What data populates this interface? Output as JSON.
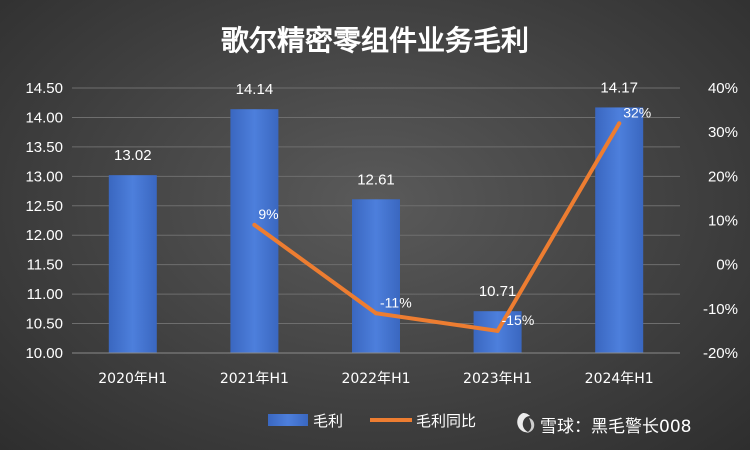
{
  "chart_data": {
    "type": "bar",
    "title": "歌尔精密零组件业务毛利",
    "categories": [
      "2020年H1",
      "2021年H1",
      "2022年H1",
      "2023年H1",
      "2024年H1"
    ],
    "series": [
      {
        "name": "毛利",
        "type": "bar",
        "axis": "left",
        "values": [
          13.02,
          14.14,
          12.61,
          10.71,
          14.17
        ],
        "labels": [
          "13.02",
          "14.14",
          "12.61",
          "10.71",
          "14.17"
        ],
        "color": "#4472c4"
      },
      {
        "name": "毛利同比",
        "type": "line",
        "axis": "right",
        "values": [
          null,
          9,
          -11,
          -15,
          32
        ],
        "labels": [
          "",
          "9%",
          "-11%",
          "-15%",
          "32%"
        ],
        "color": "#ed7d31"
      }
    ],
    "y_left": {
      "ylim": [
        10.0,
        14.5
      ],
      "ticks": [
        "10.00",
        "10.50",
        "11.00",
        "11.50",
        "12.00",
        "12.50",
        "13.00",
        "13.50",
        "14.00",
        "14.50"
      ]
    },
    "y_right": {
      "ylim": [
        -20,
        40
      ],
      "ticks": [
        "-20%",
        "-10%",
        "0%",
        "10%",
        "20%",
        "30%",
        "40%"
      ]
    },
    "grid": true,
    "legend": "bottom"
  },
  "watermark": "雪球：黑毛警长008"
}
